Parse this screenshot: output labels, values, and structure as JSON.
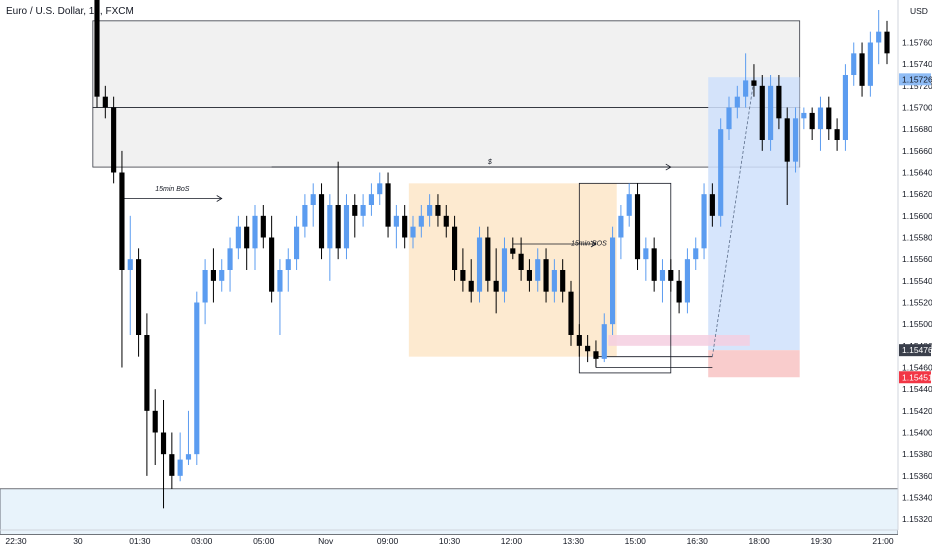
{
  "header": {
    "title": "Euro / U.S. Dollar, 15, FXCM"
  },
  "price_axis": {
    "currency_label": "USD"
  },
  "colors": {
    "bull": "#5b9cf0",
    "bear": "#000000",
    "supply_zone": "#efefef",
    "orderblock": "#fde6c8",
    "long_profit": "#cfe1fb",
    "long_stop": "#f8c3c3",
    "imbalance": "#f4cfe0",
    "current_price_tag": "#3a3f4b",
    "stop_price_tag": "#f23645",
    "entry_tag": "#8fbcf5"
  },
  "chart_data": {
    "type": "candlestick",
    "title": "Euro / U.S. Dollar, 15, FXCM",
    "y_unit": "USD",
    "ylim": [
      1.1531,
      1.1579
    ],
    "y_ticks": [
      "1.15760",
      "1.15740",
      "1.15720",
      "1.15700",
      "1.15680",
      "1.15660",
      "1.15640",
      "1.15620",
      "1.15600",
      "1.15580",
      "1.15560",
      "1.15540",
      "1.15520",
      "1.15500",
      "1.15480",
      "1.15460",
      "1.15440",
      "1.15420",
      "1.15400",
      "1.15380",
      "1.15360",
      "1.15340",
      "1.15320"
    ],
    "x_ticks": [
      "22:30",
      "30",
      "01:30",
      "03:00",
      "05:00",
      "Nov",
      "09:00",
      "10:30",
      "12:00",
      "13:30",
      "15:00",
      "16:30",
      "18:00",
      "19:30",
      "21:00"
    ],
    "candles": [
      {
        "o": 1.1581,
        "h": 1.1582,
        "l": 1.157,
        "c": 1.1571
      },
      {
        "o": 1.1571,
        "h": 1.1572,
        "l": 1.1569,
        "c": 1.157
      },
      {
        "o": 1.157,
        "h": 1.1571,
        "l": 1.1563,
        "c": 1.1564
      },
      {
        "o": 1.1564,
        "h": 1.1566,
        "l": 1.1546,
        "c": 1.1555
      },
      {
        "o": 1.1555,
        "h": 1.156,
        "l": 1.1549,
        "c": 1.1556
      },
      {
        "o": 1.1556,
        "h": 1.1557,
        "l": 1.1547,
        "c": 1.1549
      },
      {
        "o": 1.1549,
        "h": 1.1551,
        "l": 1.1536,
        "c": 1.1542
      },
      {
        "o": 1.1542,
        "h": 1.1544,
        "l": 1.1537,
        "c": 1.154
      },
      {
        "o": 1.154,
        "h": 1.1543,
        "l": 1.1533,
        "c": 1.1538
      },
      {
        "o": 1.1538,
        "h": 1.154,
        "l": 1.15348,
        "c": 1.1536
      },
      {
        "o": 1.1536,
        "h": 1.154,
        "l": 1.15355,
        "c": 1.15375
      },
      {
        "o": 1.15375,
        "h": 1.1542,
        "l": 1.1537,
        "c": 1.1538
      },
      {
        "o": 1.1538,
        "h": 1.1553,
        "l": 1.1537,
        "c": 1.1552
      },
      {
        "o": 1.1552,
        "h": 1.1556,
        "l": 1.155,
        "c": 1.1555
      },
      {
        "o": 1.1555,
        "h": 1.1557,
        "l": 1.1552,
        "c": 1.1554
      },
      {
        "o": 1.1554,
        "h": 1.1556,
        "l": 1.1553,
        "c": 1.1555
      },
      {
        "o": 1.1555,
        "h": 1.1558,
        "l": 1.1553,
        "c": 1.1557
      },
      {
        "o": 1.1557,
        "h": 1.156,
        "l": 1.1556,
        "c": 1.1559
      },
      {
        "o": 1.1559,
        "h": 1.156,
        "l": 1.1555,
        "c": 1.1557
      },
      {
        "o": 1.1557,
        "h": 1.1561,
        "l": 1.1555,
        "c": 1.156
      },
      {
        "o": 1.156,
        "h": 1.1561,
        "l": 1.1557,
        "c": 1.1558
      },
      {
        "o": 1.1558,
        "h": 1.156,
        "l": 1.1552,
        "c": 1.1553
      },
      {
        "o": 1.1553,
        "h": 1.1556,
        "l": 1.1549,
        "c": 1.1555
      },
      {
        "o": 1.1555,
        "h": 1.1557,
        "l": 1.1553,
        "c": 1.1556
      },
      {
        "o": 1.1556,
        "h": 1.156,
        "l": 1.1555,
        "c": 1.1559
      },
      {
        "o": 1.1559,
        "h": 1.1562,
        "l": 1.1558,
        "c": 1.1561
      },
      {
        "o": 1.1561,
        "h": 1.1563,
        "l": 1.1559,
        "c": 1.1562
      },
      {
        "o": 1.1562,
        "h": 1.1563,
        "l": 1.1556,
        "c": 1.1557
      },
      {
        "o": 1.1557,
        "h": 1.1562,
        "l": 1.1554,
        "c": 1.1561
      },
      {
        "o": 1.1561,
        "h": 1.1565,
        "l": 1.1556,
        "c": 1.1557
      },
      {
        "o": 1.1557,
        "h": 1.1562,
        "l": 1.1556,
        "c": 1.1561
      },
      {
        "o": 1.1561,
        "h": 1.1562,
        "l": 1.1558,
        "c": 1.156
      },
      {
        "o": 1.156,
        "h": 1.1562,
        "l": 1.1559,
        "c": 1.1561
      },
      {
        "o": 1.1561,
        "h": 1.1563,
        "l": 1.156,
        "c": 1.1562
      },
      {
        "o": 1.1562,
        "h": 1.1564,
        "l": 1.1561,
        "c": 1.1563
      },
      {
        "o": 1.1563,
        "h": 1.1564,
        "l": 1.1558,
        "c": 1.1559
      },
      {
        "o": 1.1559,
        "h": 1.1561,
        "l": 1.1557,
        "c": 1.156
      },
      {
        "o": 1.156,
        "h": 1.1561,
        "l": 1.1557,
        "c": 1.1558
      },
      {
        "o": 1.1558,
        "h": 1.156,
        "l": 1.1557,
        "c": 1.1559
      },
      {
        "o": 1.1559,
        "h": 1.1561,
        "l": 1.1558,
        "c": 1.156
      },
      {
        "o": 1.156,
        "h": 1.1562,
        "l": 1.1559,
        "c": 1.1561
      },
      {
        "o": 1.1561,
        "h": 1.1562,
        "l": 1.1559,
        "c": 1.156
      },
      {
        "o": 1.156,
        "h": 1.1561,
        "l": 1.1558,
        "c": 1.1559
      },
      {
        "o": 1.1559,
        "h": 1.156,
        "l": 1.1554,
        "c": 1.1555
      },
      {
        "o": 1.1555,
        "h": 1.1557,
        "l": 1.1553,
        "c": 1.1554
      },
      {
        "o": 1.1554,
        "h": 1.1556,
        "l": 1.1552,
        "c": 1.1553
      },
      {
        "o": 1.1553,
        "h": 1.1559,
        "l": 1.1552,
        "c": 1.1558
      },
      {
        "o": 1.1558,
        "h": 1.1559,
        "l": 1.1553,
        "c": 1.1554
      },
      {
        "o": 1.1554,
        "h": 1.1557,
        "l": 1.1551,
        "c": 1.1553
      },
      {
        "o": 1.1553,
        "h": 1.1558,
        "l": 1.1552,
        "c": 1.1557
      },
      {
        "o": 1.1557,
        "h": 1.1558,
        "l": 1.1556,
        "c": 1.15565
      },
      {
        "o": 1.15565,
        "h": 1.1558,
        "l": 1.1554,
        "c": 1.1555
      },
      {
        "o": 1.1555,
        "h": 1.1556,
        "l": 1.1553,
        "c": 1.1554
      },
      {
        "o": 1.1554,
        "h": 1.1557,
        "l": 1.1553,
        "c": 1.1556
      },
      {
        "o": 1.1556,
        "h": 1.1557,
        "l": 1.1552,
        "c": 1.1553
      },
      {
        "o": 1.1553,
        "h": 1.1556,
        "l": 1.1552,
        "c": 1.1555
      },
      {
        "o": 1.1555,
        "h": 1.1556,
        "l": 1.1552,
        "c": 1.1553
      },
      {
        "o": 1.1553,
        "h": 1.1554,
        "l": 1.1548,
        "c": 1.1549
      },
      {
        "o": 1.1549,
        "h": 1.155,
        "l": 1.1547,
        "c": 1.1548
      },
      {
        "o": 1.1548,
        "h": 1.1549,
        "l": 1.15465,
        "c": 1.15475
      },
      {
        "o": 1.15475,
        "h": 1.15485,
        "l": 1.1546,
        "c": 1.15468
      },
      {
        "o": 1.15468,
        "h": 1.1551,
        "l": 1.15465,
        "c": 1.155
      },
      {
        "o": 1.155,
        "h": 1.1559,
        "l": 1.1549,
        "c": 1.1558
      },
      {
        "o": 1.1558,
        "h": 1.1561,
        "l": 1.1556,
        "c": 1.156
      },
      {
        "o": 1.156,
        "h": 1.1563,
        "l": 1.1559,
        "c": 1.1562
      },
      {
        "o": 1.1562,
        "h": 1.1563,
        "l": 1.1555,
        "c": 1.1556
      },
      {
        "o": 1.1556,
        "h": 1.1558,
        "l": 1.1554,
        "c": 1.1557
      },
      {
        "o": 1.1557,
        "h": 1.1558,
        "l": 1.1553,
        "c": 1.1554
      },
      {
        "o": 1.1554,
        "h": 1.1556,
        "l": 1.1552,
        "c": 1.1555
      },
      {
        "o": 1.1555,
        "h": 1.1556,
        "l": 1.1553,
        "c": 1.1554
      },
      {
        "o": 1.1554,
        "h": 1.1555,
        "l": 1.1551,
        "c": 1.1552
      },
      {
        "o": 1.1552,
        "h": 1.1557,
        "l": 1.1551,
        "c": 1.1556
      },
      {
        "o": 1.1556,
        "h": 1.1558,
        "l": 1.1555,
        "c": 1.1557
      },
      {
        "o": 1.1557,
        "h": 1.1563,
        "l": 1.1556,
        "c": 1.1562
      },
      {
        "o": 1.1562,
        "h": 1.1563,
        "l": 1.1559,
        "c": 1.156
      },
      {
        "o": 1.156,
        "h": 1.1569,
        "l": 1.1559,
        "c": 1.1568
      },
      {
        "o": 1.1568,
        "h": 1.1571,
        "l": 1.1567,
        "c": 1.157
      },
      {
        "o": 1.157,
        "h": 1.1572,
        "l": 1.1569,
        "c": 1.1571
      },
      {
        "o": 1.1571,
        "h": 1.1575,
        "l": 1.157,
        "c": 1.15725
      },
      {
        "o": 1.15725,
        "h": 1.1574,
        "l": 1.1571,
        "c": 1.1572
      },
      {
        "o": 1.1572,
        "h": 1.1573,
        "l": 1.1566,
        "c": 1.1567
      },
      {
        "o": 1.1567,
        "h": 1.1573,
        "l": 1.1566,
        "c": 1.1572
      },
      {
        "o": 1.1572,
        "h": 1.1573,
        "l": 1.1568,
        "c": 1.1569
      },
      {
        "o": 1.1569,
        "h": 1.157,
        "l": 1.1561,
        "c": 1.1565
      },
      {
        "o": 1.1565,
        "h": 1.157,
        "l": 1.1564,
        "c": 1.1569
      },
      {
        "o": 1.1569,
        "h": 1.157,
        "l": 1.1568,
        "c": 1.15695
      },
      {
        "o": 1.15695,
        "h": 1.157,
        "l": 1.1567,
        "c": 1.1568
      },
      {
        "o": 1.1568,
        "h": 1.1571,
        "l": 1.1566,
        "c": 1.157
      },
      {
        "o": 1.157,
        "h": 1.1571,
        "l": 1.1567,
        "c": 1.1568
      },
      {
        "o": 1.1568,
        "h": 1.1569,
        "l": 1.1566,
        "c": 1.1567
      },
      {
        "o": 1.1567,
        "h": 1.1574,
        "l": 1.1566,
        "c": 1.1573
      },
      {
        "o": 1.1573,
        "h": 1.1576,
        "l": 1.1572,
        "c": 1.1575
      },
      {
        "o": 1.1575,
        "h": 1.1576,
        "l": 1.1571,
        "c": 1.1572
      },
      {
        "o": 1.1572,
        "h": 1.1577,
        "l": 1.1571,
        "c": 1.1576
      },
      {
        "o": 1.1576,
        "h": 1.1579,
        "l": 1.1574,
        "c": 1.1577
      },
      {
        "o": 1.1577,
        "h": 1.1578,
        "l": 1.1574,
        "c": 1.1575
      }
    ],
    "zones": [
      {
        "name": "supply-zone-upper",
        "from_candle": 0,
        "to_candle": 84,
        "y_top": 1.1578,
        "y_bottom": 1.157
      },
      {
        "name": "supply-zone-lower",
        "from_candle": 0,
        "to_candle": 84,
        "y_top": 1.157,
        "y_bottom": 1.15645
      },
      {
        "name": "orderblock",
        "from_candle": 38,
        "to_candle": 62,
        "y_top": 1.1563,
        "y_bottom": 1.1547
      },
      {
        "name": "long-target",
        "from_candle": 74,
        "to_candle": 84,
        "y_top": 1.15728,
        "y_bottom": 1.15476
      },
      {
        "name": "long-stop",
        "from_candle": 74,
        "to_candle": 84,
        "y_top": 1.15476,
        "y_bottom": 1.15451
      },
      {
        "name": "imbalance",
        "from_candle": 62,
        "to_candle": 78,
        "y_top": 1.1549,
        "y_bottom": 1.1548
      }
    ],
    "annotations": [
      {
        "text": "15min BoS",
        "at_candle": 7,
        "y": 1.1562
      },
      {
        "text": "$",
        "at_candle": 47,
        "y": 1.15645
      },
      {
        "text": "15min BOS",
        "at_candle": 57,
        "y": 1.1557
      }
    ],
    "price_tags": [
      {
        "label": "1.15726",
        "y": 1.15726,
        "role": "entry"
      },
      {
        "label": "1.15476",
        "y": 1.15476,
        "role": "current"
      },
      {
        "label": "1.15451",
        "y": 1.15451,
        "role": "stop"
      }
    ],
    "bottom_band": {
      "y_top": 1.15348,
      "y_bottom": 1.15306
    }
  }
}
